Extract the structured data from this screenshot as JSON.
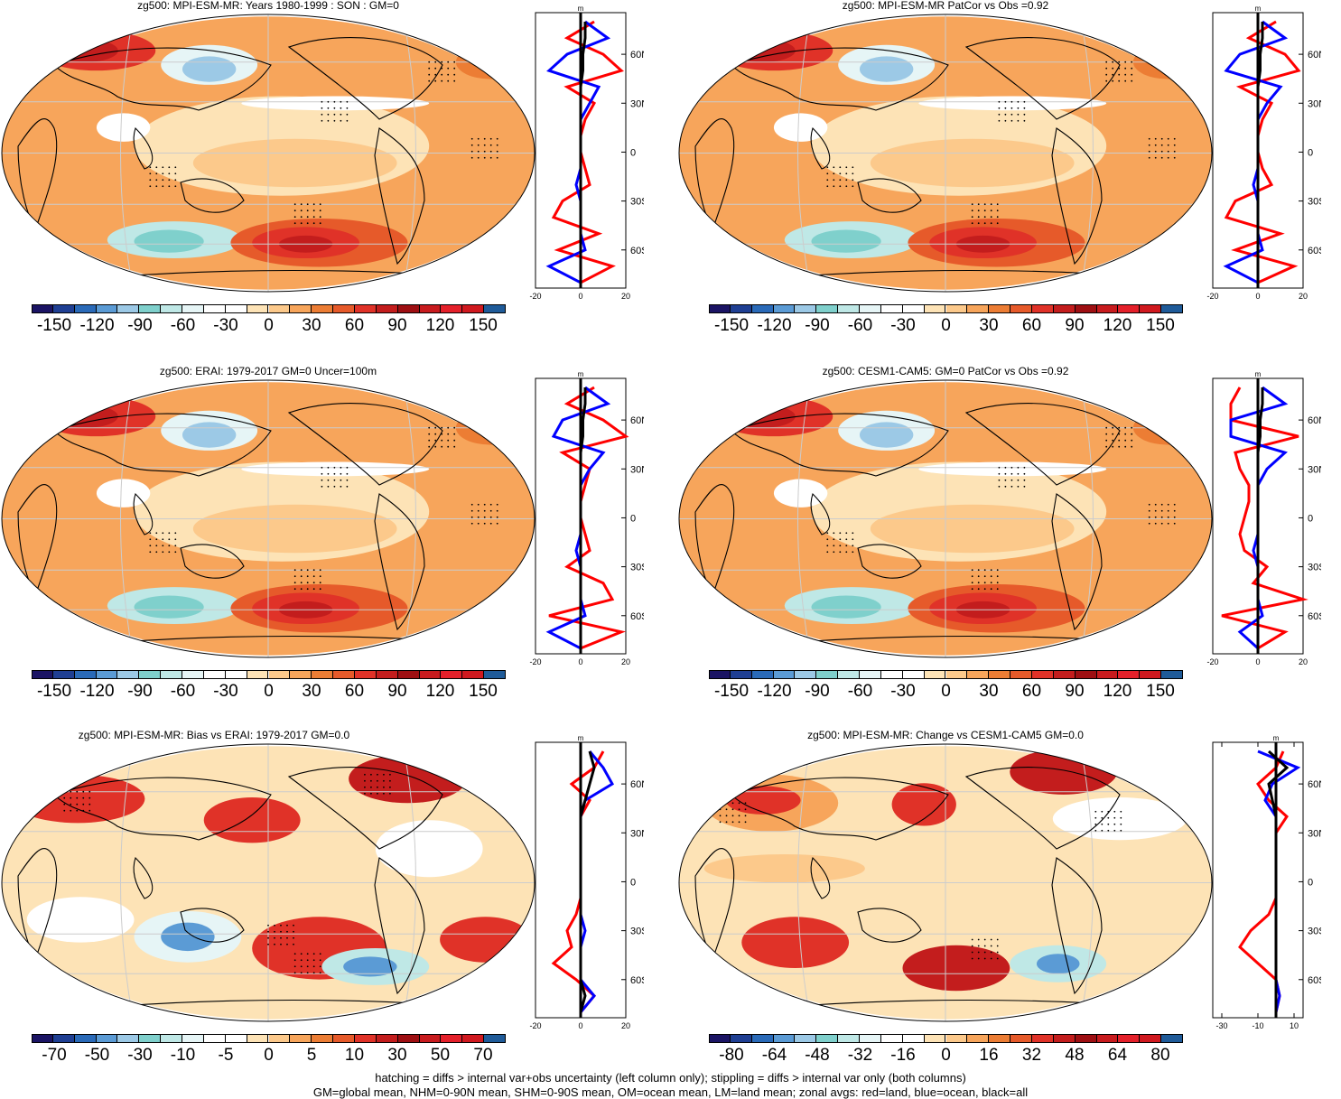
{
  "colors": {
    "scale": [
      "#1b1464",
      "#1f3f93",
      "#2a6ab8",
      "#5b9bd5",
      "#9cc9e6",
      "#7fd0cc",
      "#bfe8e6",
      "#e6f5f6",
      "#ffffff",
      "#ffffff",
      "#fde3b6",
      "#fcc98b",
      "#f7a55b",
      "#ec7d34",
      "#e65a2a",
      "#e03228",
      "#c31d1d",
      "#9e0f12",
      "#c81b1e",
      "#e4202a",
      "#d0191f",
      "#1f5b99"
    ],
    "land_line": "#000000",
    "red_curve": "#ff0000",
    "blue_curve": "#0000ff",
    "black_curve": "#000000"
  },
  "panels": [
    {
      "title": "zg500: MPI-ESM-MR: Years 1980-1999 : SON : GM=0",
      "colorbar_labels": [
        "-150",
        "-120",
        "-90",
        "-60",
        "-30",
        "0",
        "30",
        "60",
        "90",
        "120",
        "150"
      ],
      "zonal_xticks": [
        "-20",
        "0",
        "20"
      ],
      "zonal_yticks": [
        "60N",
        "30N",
        "0",
        "30S",
        "60S"
      ],
      "zonal_unit": "m"
    },
    {
      "title": "zg500: MPI-ESM-MR PatCor vs Obs =0.92",
      "colorbar_labels": [
        "-150",
        "-120",
        "-90",
        "-60",
        "-30",
        "0",
        "30",
        "60",
        "90",
        "120",
        "150"
      ],
      "zonal_xticks": [
        "-20",
        "0",
        "20"
      ],
      "zonal_yticks": [
        "60N",
        "30N",
        "0",
        "30S",
        "60S"
      ],
      "zonal_unit": "m"
    },
    {
      "title": "zg500: ERAI: 1979-2017 GM=0 Uncer=100m",
      "colorbar_labels": [
        "-150",
        "-120",
        "-90",
        "-60",
        "-30",
        "0",
        "30",
        "60",
        "90",
        "120",
        "150"
      ],
      "zonal_xticks": [
        "-20",
        "0",
        "20"
      ],
      "zonal_yticks": [
        "60N",
        "30N",
        "0",
        "30S",
        "60S"
      ],
      "zonal_unit": "m"
    },
    {
      "title": "zg500: CESM1-CAM5: GM=0 PatCor vs Obs =0.92",
      "colorbar_labels": [
        "-150",
        "-120",
        "-90",
        "-60",
        "-30",
        "0",
        "30",
        "60",
        "90",
        "120",
        "150"
      ],
      "zonal_xticks": [
        "-20",
        "0",
        "20"
      ],
      "zonal_yticks": [
        "60N",
        "30N",
        "0",
        "30S",
        "60S"
      ],
      "zonal_unit": "m"
    },
    {
      "title": "zg500: MPI-ESM-MR: Bias vs ERAI: 1979-2017  GM=0.0",
      "colorbar_labels": [
        "-70",
        "-50",
        "-30",
        "-10",
        "-5",
        "0",
        "5",
        "10",
        "30",
        "50",
        "70"
      ],
      "zonal_xticks": [
        "-20",
        "0",
        "20"
      ],
      "zonal_yticks": [
        "60N",
        "30N",
        "0",
        "30S",
        "60S"
      ],
      "zonal_unit": "m"
    },
    {
      "title": "zg500: MPI-ESM-MR: Change vs CESM1-CAM5 GM=0.0",
      "colorbar_labels": [
        "-80",
        "-64",
        "-48",
        "-32",
        "-16",
        "0",
        "16",
        "32",
        "48",
        "64",
        "80"
      ],
      "zonal_xticks": [
        "-30",
        "-10",
        "10"
      ],
      "zonal_yticks": [
        "60N",
        "30N",
        "0",
        "30S",
        "60S"
      ],
      "zonal_unit": "m"
    }
  ],
  "footer": {
    "line1": "hatching = diffs > internal var+obs uncertainty (left column only); stippling = diffs > internal var only (both columns)",
    "line2": "GM=global mean, NHM=0-90N mean, SHM=0-90S mean, OM=ocean mean, LM=land mean; zonal avgs: red=land, blue=ocean, black=all"
  },
  "chart_data": [
    {
      "type": "heatmap",
      "title": "zg500: MPI-ESM-MR: Years 1980-1999 : SON : GM=0",
      "projection": "Robinson, Pacific-centered",
      "colorbar_range": [
        -150,
        150
      ],
      "features": [
        {
          "region": "Europe / N Atlantic 60N",
          "value": 120
        },
        {
          "region": "NW Pacific 50N",
          "value": -90
        },
        {
          "region": "Southern Ocean S Pacific 55S",
          "value": 120
        },
        {
          "region": "Southern Ocean S Indian 55S",
          "value": -60
        },
        {
          "region": "Tropics",
          "value": 30
        }
      ],
      "zonal_mean": {
        "xlim": [
          -20,
          20
        ],
        "ylabel": "m",
        "lat": [
          80,
          70,
          60,
          50,
          40,
          30,
          20,
          10,
          0,
          -10,
          -20,
          -30,
          -40,
          -50,
          -60,
          -70,
          -80
        ],
        "land": [
          6,
          -6,
          10,
          18,
          -6,
          6,
          2,
          0,
          0,
          2,
          4,
          -8,
          -12,
          8,
          -10,
          14,
          0
        ],
        "ocean": [
          2,
          12,
          -6,
          -14,
          8,
          4,
          0,
          0,
          0,
          0,
          -2,
          0,
          0,
          0,
          2,
          -14,
          0
        ],
        "all": [
          2,
          2,
          1,
          1,
          0,
          0,
          0,
          0,
          0,
          0,
          0,
          0,
          0,
          0,
          0,
          0,
          0
        ]
      }
    },
    {
      "type": "heatmap",
      "title": "zg500: MPI-ESM-MR PatCor vs Obs =0.92",
      "colorbar_range": [
        -150,
        150
      ],
      "features": [
        {
          "region": "Europe / N Atlantic 60N",
          "value": 120
        },
        {
          "region": "NW Pacific 50N",
          "value": -90
        },
        {
          "region": "Southern Ocean S Pacific 55S",
          "value": 100
        },
        {
          "region": "Southern Ocean S Indian 55S",
          "value": -60
        }
      ],
      "zonal_mean": {
        "xlim": [
          -20,
          20
        ],
        "ylabel": "m",
        "lat": [
          80,
          70,
          60,
          50,
          40,
          30,
          20,
          10,
          0,
          -10,
          -20,
          -30,
          -40,
          -50,
          -60,
          -70,
          -80
        ],
        "land": [
          8,
          -4,
          12,
          18,
          -8,
          6,
          2,
          0,
          0,
          2,
          6,
          -10,
          -14,
          10,
          -10,
          16,
          0
        ],
        "ocean": [
          2,
          12,
          -8,
          -14,
          10,
          4,
          0,
          0,
          0,
          0,
          -2,
          0,
          0,
          0,
          2,
          -14,
          0
        ],
        "all": [
          2,
          2,
          1,
          1,
          0,
          0,
          0,
          0,
          0,
          0,
          0,
          0,
          0,
          0,
          0,
          0,
          0
        ]
      }
    },
    {
      "type": "heatmap",
      "title": "zg500: ERAI: 1979-2017 GM=0 Uncer=100m",
      "colorbar_range": [
        -150,
        150
      ],
      "features": [
        {
          "region": "Europe 60N",
          "value": 120
        },
        {
          "region": "NW Pacific 50N",
          "value": -60
        },
        {
          "region": "S Pacific 55S",
          "value": 120
        },
        {
          "region": "S Indian 55S",
          "value": -60
        }
      ],
      "zonal_mean": {
        "xlim": [
          -20,
          20
        ],
        "ylabel": "m",
        "lat": [
          80,
          70,
          60,
          50,
          40,
          30,
          20,
          10,
          0,
          -10,
          -20,
          -30,
          -40,
          -50,
          -60,
          -70,
          -80
        ],
        "land": [
          6,
          -6,
          10,
          20,
          -8,
          4,
          2,
          0,
          0,
          2,
          4,
          -6,
          10,
          14,
          -14,
          18,
          0
        ],
        "ocean": [
          2,
          12,
          -8,
          -12,
          10,
          4,
          0,
          0,
          0,
          0,
          -2,
          0,
          0,
          0,
          2,
          -14,
          0
        ],
        "all": [
          2,
          2,
          1,
          1,
          0,
          0,
          0,
          0,
          0,
          0,
          0,
          0,
          0,
          0,
          0,
          0,
          0
        ]
      }
    },
    {
      "type": "heatmap",
      "title": "zg500: CESM1-CAM5: GM=0 PatCor vs Obs =0.92",
      "colorbar_range": [
        -150,
        150
      ],
      "features": [
        {
          "region": "Europe 60N",
          "value": 120
        },
        {
          "region": "NW Pacific 50N",
          "value": -60
        },
        {
          "region": "S Pacific 55S",
          "value": 120
        },
        {
          "region": "S Indian 55S",
          "value": -60
        }
      ],
      "zonal_mean": {
        "xlim": [
          -20,
          20
        ],
        "ylabel": "m",
        "lat": [
          80,
          70,
          60,
          50,
          40,
          30,
          20,
          10,
          0,
          -10,
          -20,
          -30,
          -40,
          -50,
          -60,
          -70,
          -80
        ],
        "land": [
          -8,
          -12,
          -12,
          18,
          -10,
          -8,
          -4,
          -4,
          -6,
          -8,
          -6,
          4,
          -2,
          20,
          -16,
          12,
          0
        ],
        "ocean": [
          2,
          12,
          -12,
          -12,
          12,
          4,
          0,
          0,
          0,
          0,
          -2,
          0,
          0,
          0,
          2,
          -8,
          0
        ],
        "all": [
          2,
          2,
          1,
          1,
          0,
          0,
          0,
          0,
          0,
          0,
          0,
          0,
          0,
          0,
          0,
          0,
          0
        ]
      }
    },
    {
      "type": "heatmap",
      "title": "zg500: MPI-ESM-MR: Bias vs ERAI: 1979-2017  GM=0.0",
      "colorbar_range": [
        -70,
        70
      ],
      "features": [
        {
          "region": "Europe 60N",
          "value": 50
        },
        {
          "region": "N Pacific 45N",
          "value": 50
        },
        {
          "region": "Arctic Canada 70N",
          "value": 70
        },
        {
          "region": "S Indian 40S",
          "value": -30
        },
        {
          "region": "S Pacific 55S",
          "value": -30
        },
        {
          "region": "S Atlantic 45S",
          "value": 50
        }
      ],
      "zonal_mean": {
        "xlim": [
          -20,
          20
        ],
        "ylabel": "m",
        "lat": [
          80,
          70,
          60,
          50,
          40,
          30,
          20,
          10,
          0,
          -10,
          -20,
          -30,
          -40,
          -50,
          -60,
          -70,
          -80
        ],
        "land": [
          10,
          6,
          -4,
          4,
          0,
          0,
          0,
          0,
          0,
          0,
          -2,
          -6,
          -4,
          -12,
          -2,
          6,
          0
        ],
        "ocean": [
          4,
          10,
          14,
          2,
          0,
          0,
          0,
          0,
          0,
          0,
          0,
          2,
          0,
          0,
          0,
          6,
          0
        ],
        "all": [
          4,
          6,
          4,
          2,
          0,
          0,
          0,
          0,
          0,
          0,
          0,
          0,
          0,
          0,
          0,
          2,
          0
        ]
      }
    },
    {
      "type": "heatmap",
      "title": "zg500: MPI-ESM-MR: Change vs CESM1-CAM5 GM=0.0",
      "colorbar_range": [
        -80,
        80
      ],
      "features": [
        {
          "region": "Arctic Canada 70N",
          "value": 64
        },
        {
          "region": "Europe 60N",
          "value": 48
        },
        {
          "region": "S Indian 40S",
          "value": 48
        },
        {
          "region": "S Pacific 55S",
          "value": 48
        },
        {
          "region": "SE Pacific 55S",
          "value": -32
        }
      ],
      "zonal_mean": {
        "xlim": [
          -35,
          15
        ],
        "ylabel": "m",
        "lat": [
          80,
          70,
          60,
          50,
          40,
          30,
          20,
          10,
          0,
          -10,
          -20,
          -30,
          -40,
          -50,
          -60,
          -70,
          -80
        ],
        "land": [
          4,
          0,
          -10,
          -4,
          6,
          0,
          0,
          0,
          0,
          0,
          -4,
          -14,
          -20,
          -10,
          0,
          2,
          0
        ],
        "ocean": [
          -10,
          12,
          -2,
          -6,
          0,
          0,
          0,
          0,
          0,
          0,
          0,
          0,
          0,
          0,
          0,
          2,
          0
        ],
        "all": [
          -4,
          6,
          -4,
          -2,
          0,
          0,
          0,
          0,
          0,
          0,
          0,
          0,
          0,
          0,
          0,
          0,
          0
        ]
      }
    }
  ]
}
